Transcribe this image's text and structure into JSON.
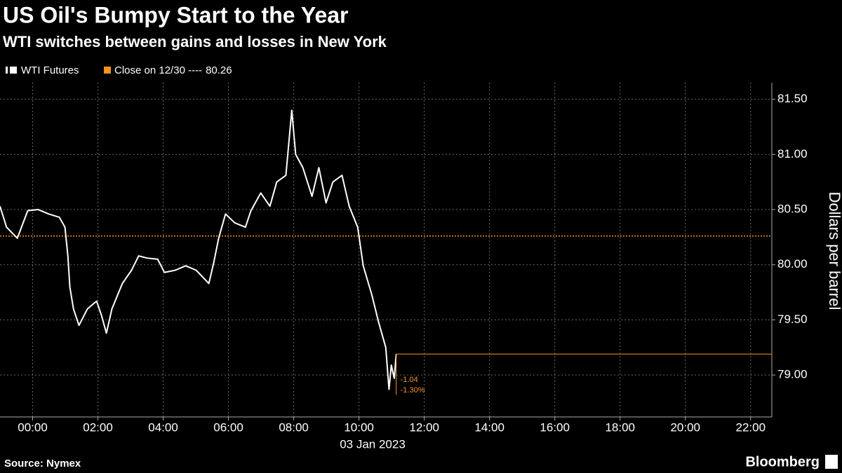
{
  "chart_data": {
    "type": "line",
    "title": "US Oil's Bumpy Start to the Year",
    "subtitle": "WTI switches between gains and losses in New York",
    "y_axis_label": "Dollars per barrel",
    "x_axis_label": "03 Jan 2023",
    "source": "Source: Nymex",
    "brand": "Bloomberg",
    "x": [
      -1.0,
      -0.8,
      -0.47,
      -0.15,
      0.17,
      0.49,
      0.82,
      0.99,
      1.08,
      1.14,
      1.25,
      1.42,
      1.68,
      1.96,
      2.11,
      2.26,
      2.43,
      2.75,
      3.03,
      3.25,
      3.51,
      3.83,
      4.04,
      4.37,
      4.69,
      5.01,
      5.4,
      5.55,
      5.7,
      5.91,
      6.19,
      6.52,
      6.69,
      6.99,
      7.27,
      7.48,
      7.76,
      7.94,
      8.06,
      8.28,
      8.56,
      8.77,
      8.99,
      9.2,
      9.48,
      9.7,
      9.96,
      10.13,
      10.39,
      10.6,
      10.82,
      10.92,
      10.99,
      11.08,
      11.14
    ],
    "series": [
      {
        "name": "WTI Futures",
        "color": "#ffffff",
        "values": [
          80.53,
          80.34,
          80.24,
          80.49,
          80.5,
          80.46,
          80.43,
          80.34,
          80.08,
          79.8,
          79.6,
          79.45,
          79.6,
          79.67,
          79.54,
          79.38,
          79.6,
          79.83,
          79.95,
          80.08,
          80.06,
          80.05,
          79.93,
          79.95,
          79.99,
          79.95,
          79.83,
          80.02,
          80.24,
          80.46,
          80.38,
          80.34,
          80.49,
          80.65,
          80.53,
          80.75,
          80.81,
          81.4,
          81.0,
          80.88,
          80.62,
          80.88,
          80.56,
          80.75,
          80.81,
          80.53,
          80.34,
          79.99,
          79.73,
          79.48,
          79.25,
          78.87,
          79.09,
          78.97,
          79.19
        ]
      }
    ],
    "reference_line": {
      "name": "Close on 12/30 ----",
      "value": 80.26,
      "color": "#f7931e"
    },
    "annotations": [
      "-1.04",
      "-1.30%"
    ],
    "xlim": [
      -1,
      22.65
    ],
    "xticks": [
      {
        "value": 0,
        "label": "00:00"
      },
      {
        "value": 2,
        "label": "02:00"
      },
      {
        "value": 4,
        "label": "04:00"
      },
      {
        "value": 6,
        "label": "06:00"
      },
      {
        "value": 8,
        "label": "08:00"
      },
      {
        "value": 10,
        "label": "10:00"
      },
      {
        "value": 12,
        "label": "12:00"
      },
      {
        "value": 14,
        "label": "14:00"
      },
      {
        "value": 16,
        "label": "16:00"
      },
      {
        "value": 18,
        "label": "18:00"
      },
      {
        "value": 20,
        "label": "20:00"
      },
      {
        "value": 22,
        "label": "22:00"
      }
    ],
    "ylim": [
      78.62,
      81.65
    ],
    "yticks": [
      {
        "value": 79,
        "label": "79.00"
      },
      {
        "value": 79.5,
        "label": "79.50"
      },
      {
        "value": 80,
        "label": "80.00"
      },
      {
        "value": 80.5,
        "label": "80.50"
      },
      {
        "value": 81,
        "label": "81.00"
      },
      {
        "value": 81.5,
        "label": "81.50"
      }
    ],
    "grid": true
  }
}
